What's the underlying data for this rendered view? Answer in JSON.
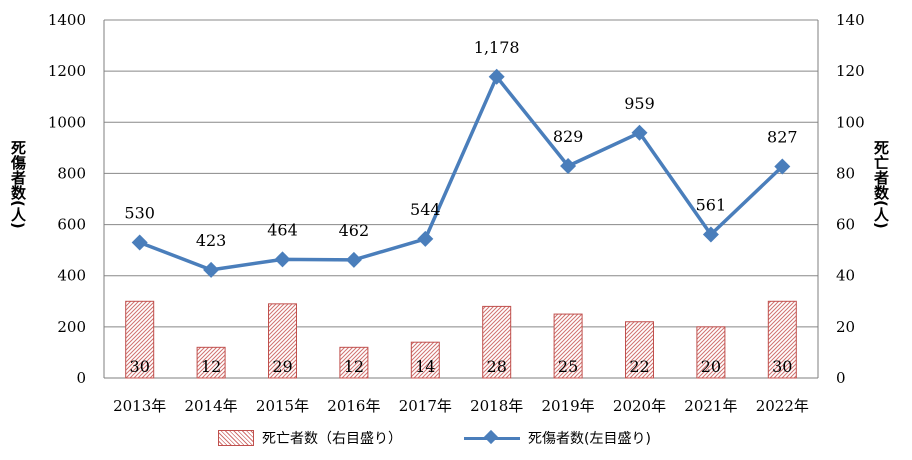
{
  "chart_data": {
    "type": "bar+line",
    "categories": [
      "2013年",
      "2014年",
      "2015年",
      "2016年",
      "2017年",
      "2018年",
      "2019年",
      "2020年",
      "2021年",
      "2022年"
    ],
    "series": [
      {
        "name": "死亡者数（右目盛り）",
        "type": "bar",
        "axis": "right",
        "values": [
          30,
          12,
          29,
          12,
          14,
          28,
          25,
          22,
          20,
          30
        ],
        "labels": [
          "30",
          "12",
          "29",
          "12",
          "14",
          "28",
          "25",
          "22",
          "20",
          "30"
        ]
      },
      {
        "name": "死傷者数(左目盛り)",
        "type": "line",
        "axis": "left",
        "values": [
          530,
          423,
          464,
          462,
          544,
          1178,
          829,
          959,
          561,
          827
        ],
        "labels": [
          "530",
          "423",
          "464",
          "462",
          "544",
          "1,178",
          "829",
          "959",
          "561",
          "827"
        ]
      }
    ],
    "y_left": {
      "label": "死傷者数(人)",
      "range": [
        0,
        1400
      ],
      "ticks": [
        "0",
        "200",
        "400",
        "600",
        "800",
        "1000",
        "1200",
        "1400"
      ]
    },
    "y_right": {
      "label": "死亡者数(人)",
      "range": [
        0,
        140
      ],
      "ticks": [
        "0",
        "20",
        "40",
        "60",
        "80",
        "100",
        "120",
        "140"
      ]
    },
    "grid": true,
    "legend_position": "bottom",
    "colors": {
      "bar_edge": "#c0504d",
      "bar_hatch": "#d07270",
      "line": "#4a7ebb",
      "grid": "#888888"
    }
  }
}
